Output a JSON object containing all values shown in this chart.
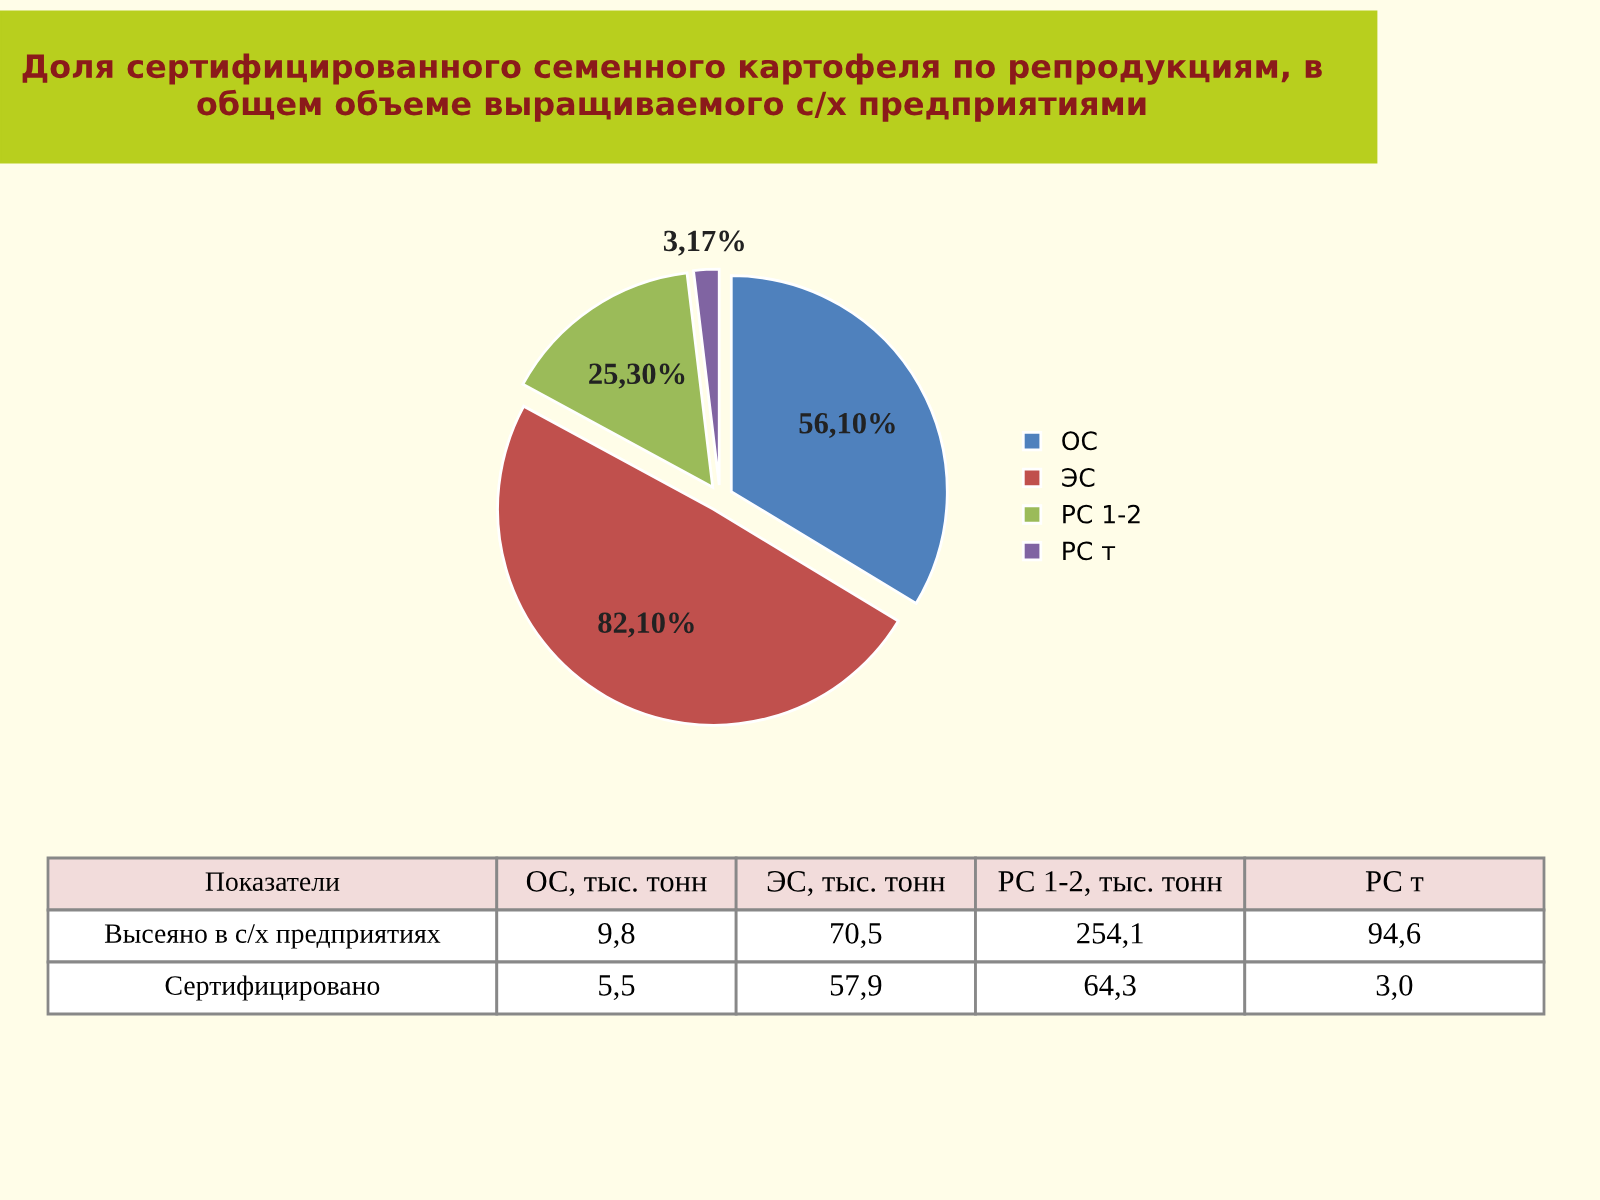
{
  "chart_data": [
    {
      "type": "pie",
      "title": "Доля сертифицированного семенного картофеля по репродукциям, в общем объеме выращиваемого с/х предприятиями",
      "categories": [
        "ОС",
        "ЭС",
        "РС 1-2",
        "РС т"
      ],
      "values": [
        56.1,
        82.1,
        25.3,
        3.17
      ],
      "value_labels": [
        "56,10%",
        "82,10%",
        "25,30%",
        "3,17%"
      ],
      "colors": [
        "#4f81bd",
        "#c0504d",
        "#9bbb59",
        "#8064a2"
      ],
      "legend": "right"
    },
    {
      "type": "other",
      "categories": [
        "Показатели",
        "ОС, тыс. тонн",
        "ЭС, тыс. тонн",
        "РС 1-2, тыс. тонн",
        "РС т"
      ],
      "cell_labels": [
        [
          "Высеяно в с/х предприятиях",
          "9,8",
          "70,5",
          "254,1",
          "94,6"
        ],
        [
          "Сертифицировано",
          "5,5",
          "57,9",
          "64,3",
          "3,0"
        ]
      ]
    }
  ]
}
